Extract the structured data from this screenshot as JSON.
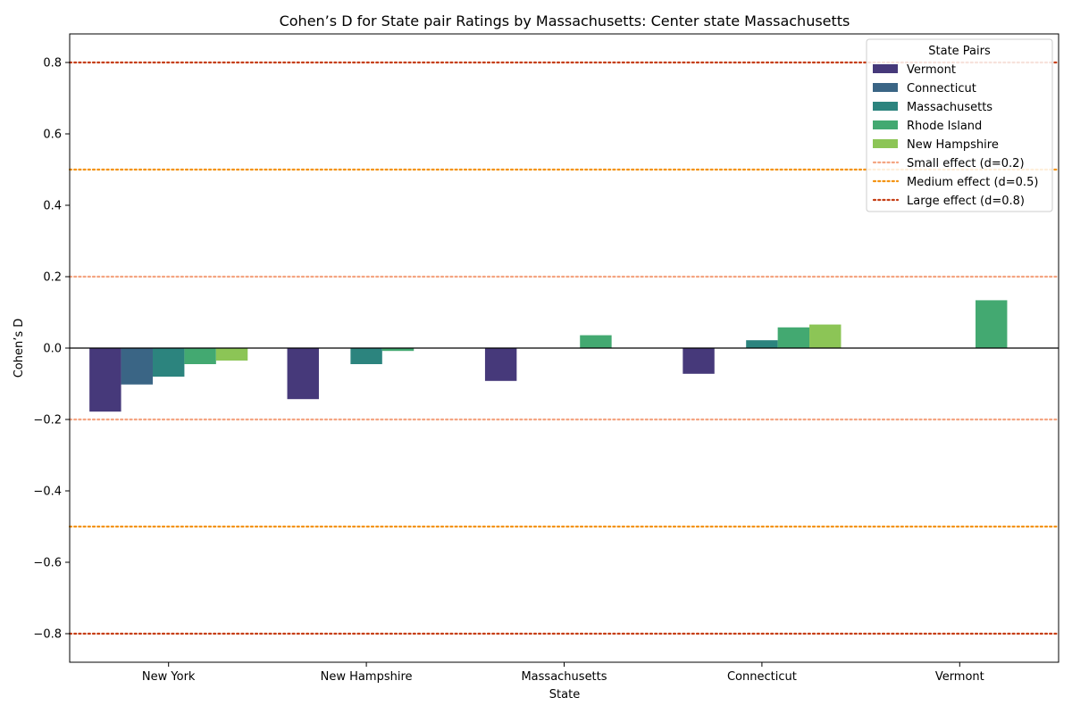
{
  "chart_data": {
    "type": "bar",
    "title": "Cohen’s D for State pair Ratings by Massachusetts: Center state Massachusetts",
    "xlabel": "State",
    "ylabel": "Cohen’s D",
    "categories": [
      "New York",
      "New Hampshire",
      "Massachusetts",
      "Connecticut",
      "Vermont"
    ],
    "ylim": [
      -0.88,
      0.88
    ],
    "yticks": [
      -0.8,
      -0.6,
      -0.4,
      -0.2,
      0.0,
      0.2,
      0.4,
      0.6,
      0.8
    ],
    "ytick_labels": [
      "−0.8",
      "−0.6",
      "−0.4",
      "−0.2",
      "0.0",
      "0.2",
      "0.4",
      "0.6",
      "0.8"
    ],
    "grid": false,
    "legend": {
      "title": "State Pairs",
      "placement": "top-right"
    },
    "series": [
      {
        "name": "Vermont",
        "color": "#46397a",
        "values": [
          -0.178,
          -0.143,
          -0.092,
          -0.072,
          null
        ]
      },
      {
        "name": "Connecticut",
        "color": "#3a6585",
        "values": [
          -0.102,
          null,
          null,
          null,
          null
        ]
      },
      {
        "name": "Massachusetts",
        "color": "#2c847e",
        "values": [
          -0.08,
          -0.045,
          null,
          0.022,
          null
        ]
      },
      {
        "name": "Rhode Island",
        "color": "#43a971",
        "values": [
          -0.045,
          -0.008,
          0.036,
          0.058,
          0.134
        ]
      },
      {
        "name": "New Hampshire",
        "color": "#8cc556",
        "values": [
          -0.035,
          null,
          null,
          0.066,
          null
        ]
      }
    ],
    "reference_lines": [
      {
        "name": "Small effect (d=0.2)",
        "value": 0.2,
        "color": "#f4a582"
      },
      {
        "name": "Medium effect (d=0.5)",
        "value": 0.5,
        "color": "#f39313"
      },
      {
        "name": "Large effect (d=0.8)",
        "value": 0.8,
        "color": "#c63f15"
      }
    ]
  }
}
